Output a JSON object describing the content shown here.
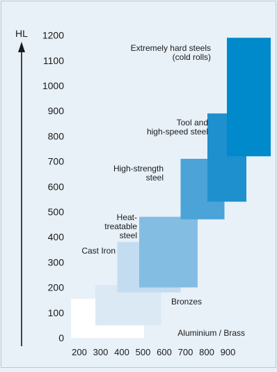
{
  "chart_data": {
    "type": "bar",
    "title": "",
    "ylabel": "HL",
    "xlabel": "",
    "ylim": [
      0,
      1200
    ],
    "yticks": [
      "0",
      "100",
      "200",
      "300",
      "400",
      "500",
      "600",
      "700",
      "800",
      "900",
      "1000",
      "1100",
      "1200"
    ],
    "xticks": [
      "200",
      "300",
      "400",
      "500",
      "600",
      "700",
      "800",
      "900"
    ],
    "background": "#e8f1f8",
    "materials": [
      {
        "name": "Aluminium / Brass",
        "x0": 180,
        "x1": 480,
        "y0": 0,
        "y1": 155,
        "color": "#ffffff"
      },
      {
        "name": "Bronzes",
        "x0": 280,
        "x1": 550,
        "y0": 50,
        "y1": 210,
        "color": "#dbe9f5"
      },
      {
        "name": "Cast Iron",
        "x0": 370,
        "x1": 630,
        "y0": 180,
        "y1": 380,
        "color": "#c3dcf0"
      },
      {
        "name": "Heat-treatable steel",
        "x0": 460,
        "x1": 700,
        "y0": 200,
        "y1": 480,
        "color": "#84bde2"
      },
      {
        "name": "High-strength steel",
        "x0": 630,
        "x1": 810,
        "y0": 470,
        "y1": 710,
        "color": "#4ba3d8"
      },
      {
        "name": "Tool and high-speed steel",
        "x0": 740,
        "x1": 900,
        "y0": 540,
        "y1": 890,
        "color": "#1e90cd"
      },
      {
        "name": "Extremely hard steels (cold rolls)",
        "x0": 820,
        "x1": 1000,
        "y0": 720,
        "y1": 1190,
        "color": "#0089cb"
      }
    ],
    "labels": [
      {
        "lines": [
          "Aluminium / Brass"
        ]
      },
      {
        "lines": [
          "Bronzes"
        ]
      },
      {
        "lines": [
          "Cast Iron"
        ]
      },
      {
        "lines": [
          "Heat-",
          "treatable",
          "steel"
        ]
      },
      {
        "lines": [
          "High-strength",
          "steel"
        ]
      },
      {
        "lines": [
          "Tool and",
          "high-speed steel"
        ]
      },
      {
        "lines": [
          "Extremely hard steels",
          "(cold rolls)"
        ]
      }
    ]
  }
}
